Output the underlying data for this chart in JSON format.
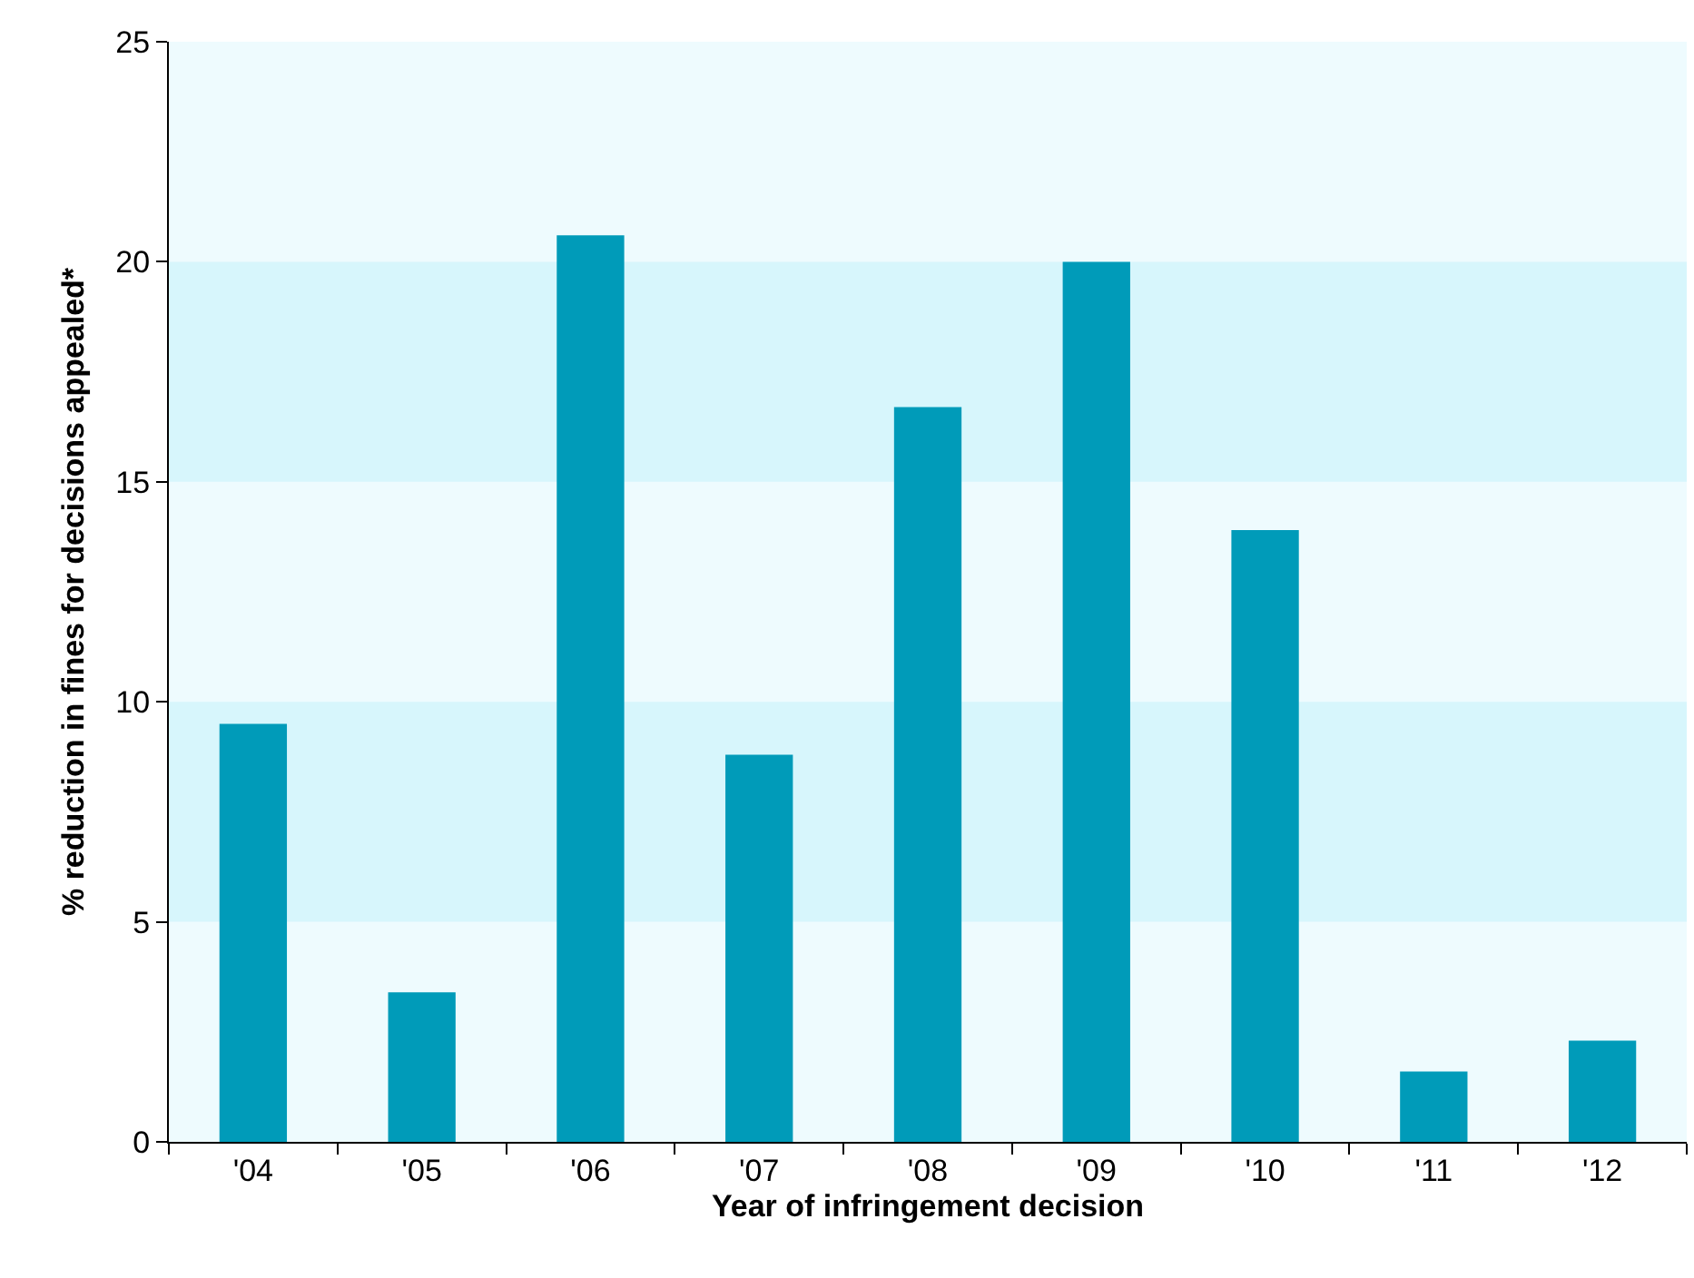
{
  "chart_data": {
    "type": "bar",
    "xlabel": "Year of infringement decision",
    "ylabel": "% reduction in fines for decisions appealed*",
    "categories": [
      "'04",
      "'05",
      "'06",
      "'07",
      "'08",
      "'09",
      "'10",
      "'11",
      "'12"
    ],
    "values": [
      9.5,
      3.4,
      20.6,
      8.8,
      16.7,
      20.0,
      13.9,
      1.6,
      2.3
    ],
    "color": "#009bb9",
    "ylim": [
      0,
      25
    ],
    "yticks": [
      0,
      5,
      10,
      15,
      20,
      25
    ],
    "grid": false,
    "legend": false,
    "bands": [
      {
        "axis": "y",
        "from": 5,
        "to": 10,
        "color": "#d7f6fc"
      },
      {
        "axis": "y",
        "from": 15,
        "to": 20,
        "color": "#d7f6fc"
      }
    ]
  }
}
